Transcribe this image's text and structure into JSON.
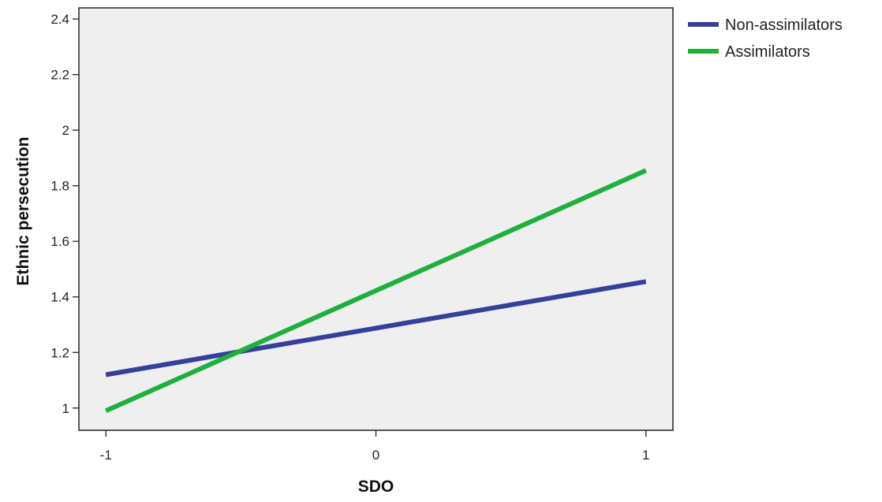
{
  "chart_data": {
    "type": "line",
    "title": "",
    "xlabel": "SDO",
    "ylabel": "Ethnic persecution",
    "x": [
      -1,
      1
    ],
    "xticks": [
      -1,
      0,
      1
    ],
    "xlim": [
      -1.1,
      1.1
    ],
    "yticks": [
      1,
      1.2,
      1.4,
      1.6,
      1.8,
      2,
      2.2,
      2.4
    ],
    "ylim": [
      0.92,
      2.44
    ],
    "grid": false,
    "legend_position": "top-right, outside plot",
    "plot_background": "#efefef",
    "series": [
      {
        "name": "Non-assimilators",
        "color": "#34409a",
        "values": [
          1.12,
          1.455
        ]
      },
      {
        "name": "Assimilators",
        "color": "#1db13b",
        "values": [
          0.99,
          1.855
        ]
      }
    ]
  }
}
